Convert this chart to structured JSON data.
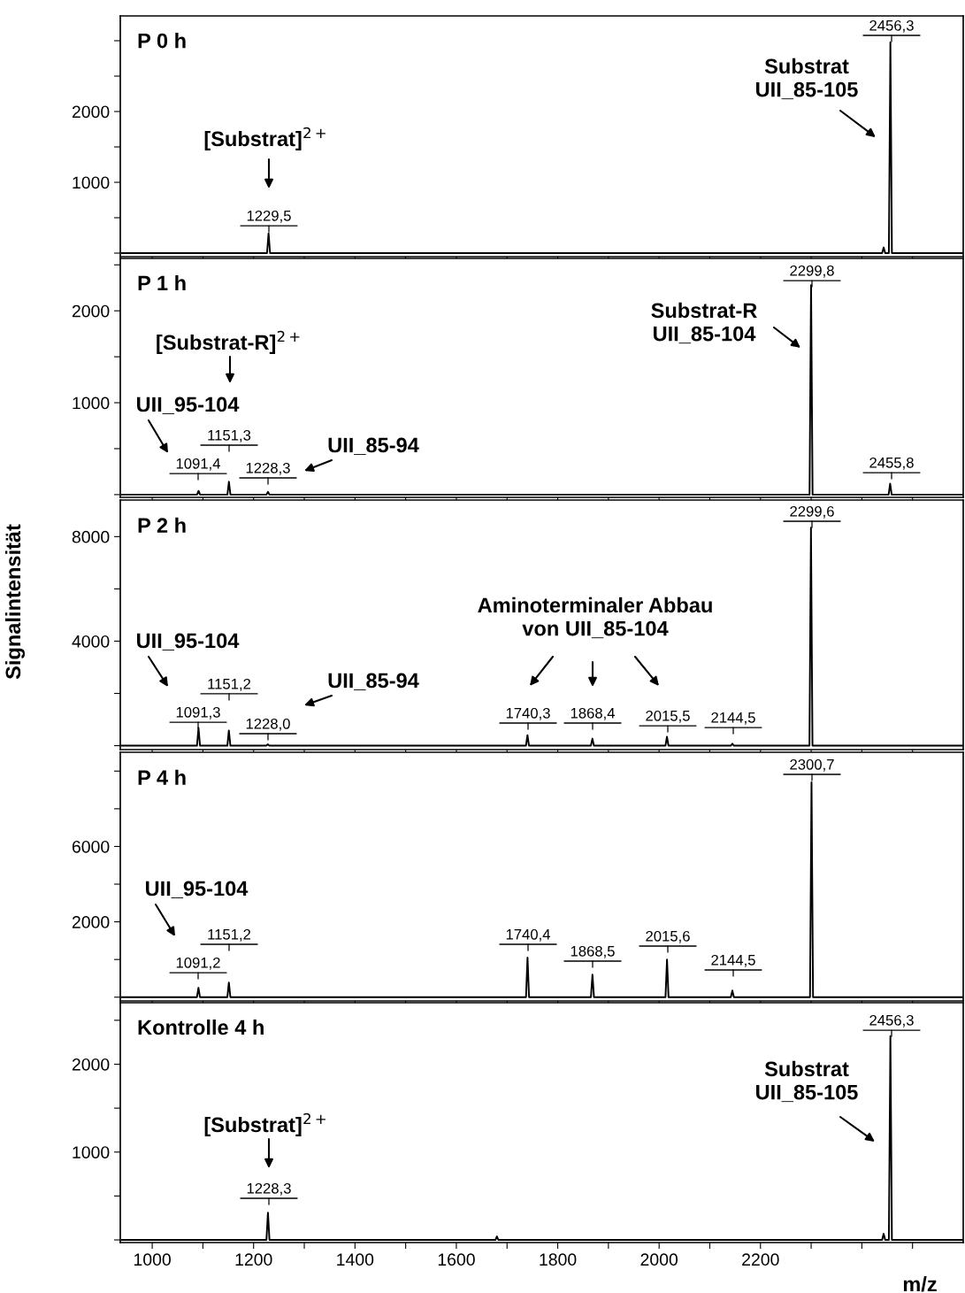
{
  "chart_data": [
    {
      "type": "line",
      "title": "P 0 h",
      "xlim": [
        937,
        2600
      ],
      "xticks": [
        1000,
        {
          "value": 1100,
          "label": null
        },
        {
          "value": 1200,
          "label": null
        },
        {
          "value": 1300,
          "label": null
        },
        {
          "value": 1400,
          "label": null
        },
        {
          "value": 1500,
          "label": null
        },
        {
          "value": 1600,
          "label": null
        },
        {
          "value": 1700,
          "label": null
        },
        {
          "value": 1800,
          "label": null
        },
        {
          "value": 1900,
          "label": null
        },
        {
          "value": 2000,
          "label": null
        },
        {
          "value": 2100,
          "label": null
        },
        {
          "value": 2200,
          "label": null
        },
        {
          "value": 2300,
          "label": null
        },
        {
          "value": 2400,
          "label": null
        },
        {
          "value": 2500,
          "label": null
        }
      ],
      "ylim": [
        -50,
        3350
      ],
      "yticks": [
        {
          "value": 0,
          "label": null
        },
        {
          "value": 500,
          "label": null
        },
        1000,
        {
          "value": 1500,
          "label": null
        },
        2000,
        {
          "value": 2500,
          "label": null
        },
        {
          "value": 3000,
          "label": null
        }
      ],
      "tick_labels": "y",
      "series": [
        {
          "color": "#000000",
          "x": [
            940,
            1226.5,
            1229.5,
            1232.5,
            2440,
            2443,
            2446,
            2453.3,
            2456.3,
            2459.3,
            2598
          ],
          "values": [
            0,
            0,
            280,
            0,
            0,
            80,
            0,
            0,
            2980,
            0,
            0
          ]
        }
      ],
      "annotations": [
        "1229,5",
        "2456,3",
        "[Substrat]$^{2+}$",
        "Substrat\nUII_85-105"
      ]
    },
    {
      "type": "line",
      "title": "P 1 h",
      "xlim": [
        937,
        2600
      ],
      "xticks": [
        1000,
        {
          "value": 1100,
          "label": null
        },
        {
          "value": 1200,
          "label": null
        },
        {
          "value": 1300,
          "label": null
        },
        {
          "value": 1400,
          "label": null
        },
        {
          "value": 1500,
          "label": null
        },
        {
          "value": 1600,
          "label": null
        },
        {
          "value": 1700,
          "label": null
        },
        {
          "value": 1800,
          "label": null
        },
        {
          "value": 1900,
          "label": null
        },
        {
          "value": 2000,
          "label": null
        },
        {
          "value": 2100,
          "label": null
        },
        {
          "value": 2200,
          "label": null
        },
        {
          "value": 2300,
          "label": null
        },
        {
          "value": 2400,
          "label": null
        },
        {
          "value": 2500,
          "label": null
        }
      ],
      "ylim": [
        -30,
        2570
      ],
      "yticks": [
        {
          "value": 0,
          "label": null
        },
        {
          "value": 500,
          "label": null
        },
        1000,
        {
          "value": 1500,
          "label": null
        },
        2000,
        {
          "value": 2500,
          "label": null
        }
      ],
      "tick_labels": "y",
      "series": [
        {
          "color": "#000000",
          "x": [
            940,
            1088.4,
            1091.4,
            1094.4,
            1148.3,
            1151.3,
            1154.3,
            1225.3,
            1228.3,
            1231.3,
            2296.8,
            2299.8,
            2302.8,
            2452.8,
            2455.8,
            2458.8,
            2598
          ],
          "values": [
            0,
            0,
            40,
            0,
            0,
            140,
            0,
            0,
            30,
            0,
            0,
            2280,
            0,
            0,
            120,
            0,
            0
          ]
        }
      ],
      "annotations": [
        "1091,4",
        "1151,3",
        "1228,3",
        "2299,8",
        "2455,8",
        "[Substrat-R]$^{2+}$",
        "UII_95-104",
        "UII_85-94",
        "Substrat-R\nUII_85-104"
      ]
    },
    {
      "type": "line",
      "title": "P 2 h",
      "ylabel": "Signalintensität",
      "xlim": [
        937,
        2600
      ],
      "xticks": [
        1000,
        {
          "value": 1100,
          "label": null
        },
        {
          "value": 1200,
          "label": null
        },
        {
          "value": 1300,
          "label": null
        },
        {
          "value": 1400,
          "label": null
        },
        {
          "value": 1500,
          "label": null
        },
        {
          "value": 1600,
          "label": null
        },
        {
          "value": 1700,
          "label": null
        },
        {
          "value": 1800,
          "label": null
        },
        {
          "value": 1900,
          "label": null
        },
        {
          "value": 2000,
          "label": null
        },
        {
          "value": 2100,
          "label": null
        },
        {
          "value": 2200,
          "label": null
        },
        {
          "value": 2300,
          "label": null
        },
        {
          "value": 2400,
          "label": null
        },
        {
          "value": 2500,
          "label": null
        }
      ],
      "ylim": [
        -150,
        9400
      ],
      "yticks": [
        {
          "value": 0,
          "label": null
        },
        {
          "value": 2000,
          "label": null
        },
        4000,
        {
          "value": 6000,
          "label": null
        },
        8000
      ],
      "tick_labels": "y",
      "series": [
        {
          "color": "#000000",
          "x": [
            940,
            1088.3,
            1091.3,
            1094.3,
            1148.2,
            1151.2,
            1154.2,
            1225,
            1228,
            1231,
            1737.3,
            1740.3,
            1743.3,
            1865.4,
            1868.4,
            1871.4,
            2012.5,
            2015.5,
            2018.5,
            2141.5,
            2144.5,
            2147.5,
            2296.6,
            2299.6,
            2302.6,
            2598
          ],
          "values": [
            0,
            0,
            680,
            0,
            0,
            580,
            0,
            0,
            50,
            0,
            0,
            400,
            0,
            0,
            270,
            0,
            0,
            340,
            0,
            0,
            80,
            0,
            0,
            8340,
            0,
            0
          ]
        }
      ],
      "annotations": [
        "1091,3",
        "1151,2",
        "1228,0",
        "1740,3",
        "1868,4",
        "2015,5",
        "2144,5",
        "2299,6",
        "UII_95-104",
        "UII_85-94",
        "Aminoterminaler Abbau\nvon UII_85-104"
      ]
    },
    {
      "type": "line",
      "title": "P 4 h",
      "xlim": [
        937,
        2600
      ],
      "xticks": [
        1000,
        {
          "value": 1100,
          "label": null
        },
        {
          "value": 1200,
          "label": null
        },
        {
          "value": 1300,
          "label": null
        },
        {
          "value": 1400,
          "label": null
        },
        {
          "value": 1500,
          "label": null
        },
        {
          "value": 1600,
          "label": null
        },
        {
          "value": 1700,
          "label": null
        },
        {
          "value": 1800,
          "label": null
        },
        {
          "value": 1900,
          "label": null
        },
        {
          "value": 2000,
          "label": null
        },
        {
          "value": 2100,
          "label": null
        },
        {
          "value": 2200,
          "label": null
        },
        {
          "value": 2300,
          "label": null
        },
        {
          "value": 2400,
          "label": null
        },
        {
          "value": 2500,
          "label": null
        }
      ],
      "ylim": [
        -2200,
        11000
      ],
      "yticks": [
        {
          "value": -2000,
          "label": null
        },
        {
          "value": 0,
          "label": null
        },
        2000,
        {
          "value": 4000,
          "label": null
        },
        6000,
        {
          "value": 8000,
          "label": null
        },
        {
          "value": 10000,
          "label": null
        }
      ],
      "tick_labels": "y",
      "series": [
        {
          "color": "#000000",
          "x": [
            940,
            1088.2,
            1091.2,
            1094.2,
            1148.2,
            1151.2,
            1154.2,
            1737.4,
            1740.4,
            1743.4,
            1865.5,
            1868.5,
            1871.5,
            2012.6,
            2015.6,
            2018.6,
            2141.5,
            2144.5,
            2147.5,
            2297.7,
            2300.7,
            2303.7,
            2598
          ],
          "values": [
            -2000,
            -2000,
            -1500,
            -2000,
            -2000,
            -1220,
            -2000,
            -2000,
            100,
            -2000,
            -2000,
            -800,
            -2000,
            -2000,
            0,
            -2000,
            -2000,
            -1650,
            -2000,
            -2000,
            9400,
            -2000,
            -2000
          ]
        }
      ],
      "annotations": [
        "1091,2",
        "1151,2",
        "1740,4",
        "1868,5",
        "2015,6",
        "2144,5",
        "2300,7",
        "UII_95-104"
      ]
    },
    {
      "type": "line",
      "title": "Kontrolle 4 h",
      "xlabel": "m/z",
      "xlim": [
        937,
        2600
      ],
      "xticks": [
        1000,
        {
          "value": 1100,
          "label": null
        },
        1200,
        {
          "value": 1300,
          "label": null
        },
        1400,
        {
          "value": 1500,
          "label": null
        },
        1600,
        {
          "value": 1700,
          "label": null
        },
        1800,
        {
          "value": 1900,
          "label": null
        },
        2000,
        {
          "value": 2100,
          "label": null
        },
        2200,
        {
          "value": 2300,
          "label": null
        },
        {
          "value": 2400,
          "label": null
        },
        {
          "value": 2500,
          "label": null
        }
      ],
      "ylim": [
        -30,
        2700
      ],
      "yticks": [
        {
          "value": 0,
          "label": null
        },
        {
          "value": 500,
          "label": null
        },
        1000,
        {
          "value": 1500,
          "label": null
        },
        2000,
        {
          "value": 2500,
          "label": null
        }
      ],
      "series": [
        {
          "color": "#000000",
          "x": [
            940,
            1225.3,
            1228.3,
            1231.3,
            1677,
            1680,
            1683,
            2440,
            2443,
            2446,
            2453.3,
            2456.3,
            2459.3,
            2598
          ],
          "values": [
            0,
            0,
            310,
            0,
            0,
            40,
            0,
            0,
            70,
            0,
            0,
            2320,
            0,
            0
          ]
        }
      ],
      "annotations": [
        "1228,3",
        "2456,3",
        "[Substrat]$^{2+}$",
        "Substrat\nUII_85-105"
      ]
    }
  ]
}
